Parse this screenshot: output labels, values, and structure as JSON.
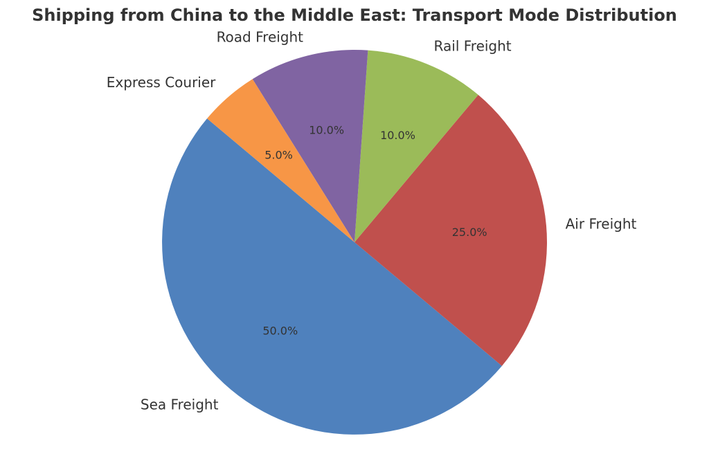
{
  "chart_data": {
    "type": "pie",
    "title": "Shipping from China to the Middle East: Transport Mode Distribution",
    "categories": [
      "Sea Freight",
      "Air Freight",
      "Rail Freight",
      "Road Freight",
      "Express Courier"
    ],
    "values": [
      50,
      25,
      10,
      10,
      5
    ],
    "percent_labels": [
      "50.0%",
      "25.0%",
      "10.0%",
      "10.0%",
      "5.0%"
    ],
    "colors": [
      "#4f81bd",
      "#c0504d",
      "#9bbb59",
      "#8064a2",
      "#f79646"
    ],
    "start_angle_deg": 140,
    "direction": "counterclockwise",
    "legend": "none"
  }
}
